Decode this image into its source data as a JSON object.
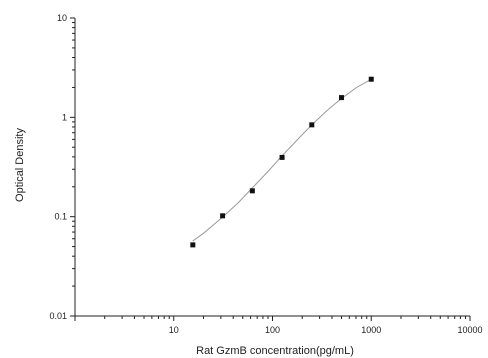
{
  "chart_data": {
    "type": "scatter",
    "xlabel": "Rat GzmB concentration(pg/mL)",
    "ylabel": "Optical Density",
    "x_scale": "log",
    "y_scale": "log",
    "xlim": [
      1,
      10000
    ],
    "ylim": [
      0.01,
      10
    ],
    "x_ticks": [
      "10",
      "100",
      "1000",
      "10000"
    ],
    "y_ticks": [
      "10",
      "1",
      "0.1",
      "0.01"
    ],
    "grid": false,
    "series": [
      {
        "points": [
          {
            "x": 15.6,
            "y": 0.052
          },
          {
            "x": 31.25,
            "y": 0.102
          },
          {
            "x": 62.5,
            "y": 0.182
          },
          {
            "x": 125,
            "y": 0.395
          },
          {
            "x": 250,
            "y": 0.84
          },
          {
            "x": 500,
            "y": 1.58
          },
          {
            "x": 1000,
            "y": 2.42
          }
        ],
        "fit_curve": [
          {
            "x": 15.6,
            "y": 0.057
          },
          {
            "x": 20,
            "y": 0.068
          },
          {
            "x": 31.25,
            "y": 0.099
          },
          {
            "x": 45,
            "y": 0.138
          },
          {
            "x": 62.5,
            "y": 0.195
          },
          {
            "x": 90,
            "y": 0.285
          },
          {
            "x": 125,
            "y": 0.41
          },
          {
            "x": 180,
            "y": 0.6
          },
          {
            "x": 250,
            "y": 0.84
          },
          {
            "x": 350,
            "y": 1.15
          },
          {
            "x": 500,
            "y": 1.55
          },
          {
            "x": 700,
            "y": 1.98
          },
          {
            "x": 1000,
            "y": 2.42
          }
        ],
        "colors": {
          "marker": "#111111",
          "curve": "#9a9a9a",
          "axis": "#222222"
        }
      }
    ]
  }
}
